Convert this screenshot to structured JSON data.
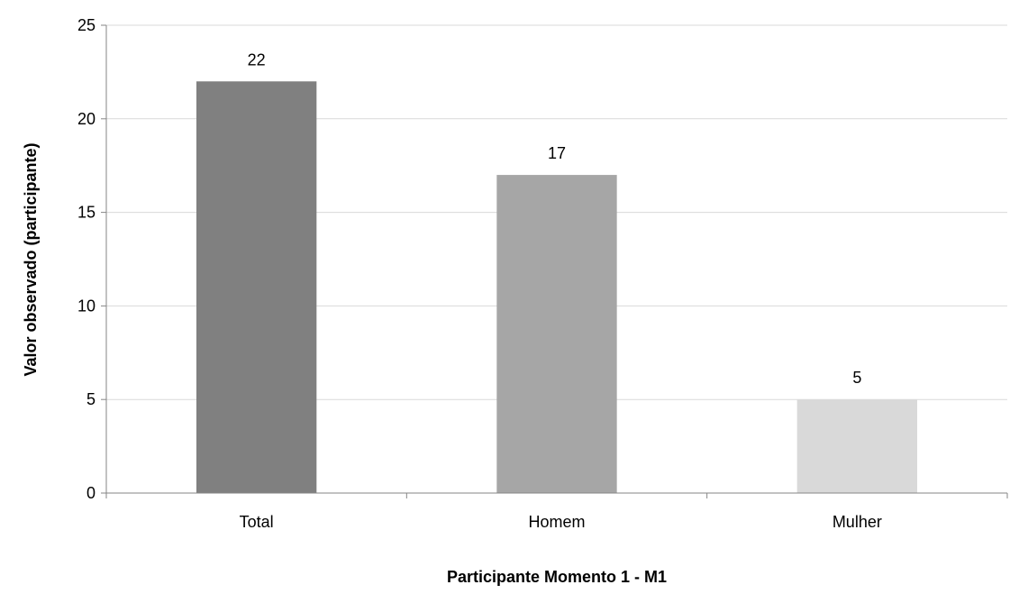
{
  "chart_data": {
    "type": "bar",
    "title": "",
    "xlabel": "Participante Momento 1 - M1",
    "ylabel": "Valor observado (participante)",
    "categories": [
      "Total",
      "Homem",
      "Mulher"
    ],
    "values": [
      22,
      17,
      5
    ],
    "data_labels": [
      "22",
      "17",
      "5"
    ],
    "bar_colors": [
      "#808080",
      "#a6a6a6",
      "#d9d9d9"
    ],
    "ylim": [
      0,
      25
    ],
    "yticks": [
      0,
      5,
      10,
      15,
      20,
      25
    ],
    "ytick_labels": [
      "0",
      "5",
      "10",
      "15",
      "20",
      "25"
    ],
    "grid": true,
    "grid_color": "#d9d9d9",
    "legend": "none"
  }
}
